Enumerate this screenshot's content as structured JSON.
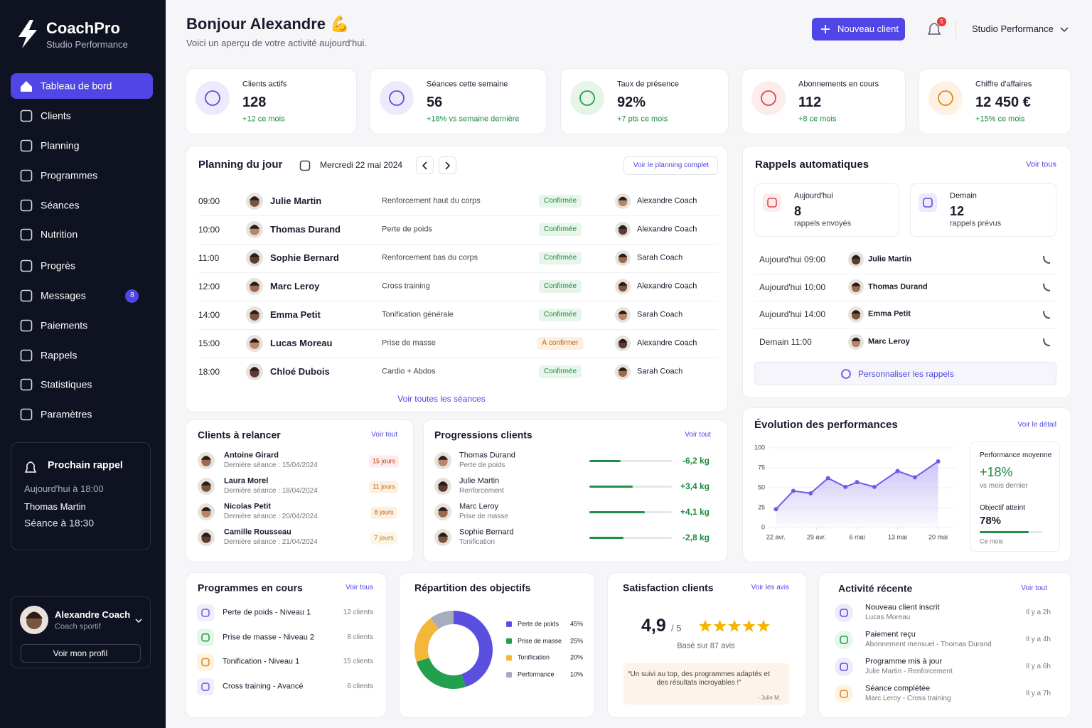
{
  "sidebar": {
    "brand": "CoachPro",
    "brand_subtitle": "Studio Performance",
    "nav": [
      {
        "label": "Tableau de bord",
        "active": true
      },
      {
        "label": "Clients"
      },
      {
        "label": "Planning"
      },
      {
        "label": "Programmes"
      },
      {
        "label": "Séances"
      },
      {
        "label": "Nutrition"
      },
      {
        "label": "Progrès"
      },
      {
        "label": "Messages",
        "badge": 8
      },
      {
        "label": "Paiements"
      },
      {
        "label": "Rappels"
      },
      {
        "label": "Statistiques"
      },
      {
        "label": "Paramètres"
      }
    ],
    "next_reminder": {
      "title": "Prochain rappel",
      "when": "Aujourd'hui à 18:00",
      "client": "Thomas Martin",
      "session": "Séance à 18:30"
    },
    "profile": {
      "name": "Alexandre Coach",
      "role": "Coach sportif",
      "button": "Voir mon profil"
    }
  },
  "header": {
    "greeting": "Bonjour Alexandre 💪",
    "subtitle": "Voici un aperçu de votre activité aujourd'hui.",
    "new_client": "Nouveau client",
    "notifications": 5,
    "studio": "Studio Performance"
  },
  "kpis": [
    {
      "label": "Clients actifs",
      "value": "128",
      "delta": "+12 ce mois"
    },
    {
      "label": "Séances cette semaine",
      "value": "56",
      "delta": "+18% vs semaine dernière"
    },
    {
      "label": "Taux de présence",
      "value": "92%",
      "delta": "+7 pts ce mois"
    },
    {
      "label": "Abonnements en cours",
      "value": "112",
      "delta": "+8 ce mois"
    },
    {
      "label": "Chiffre d'affaires",
      "value": "12 450 €",
      "delta": "+15% ce mois"
    }
  ],
  "planning": {
    "title": "Planning du jour",
    "date": "Mercredi 22 mai 2024",
    "link": "Voir le planning complet",
    "footer": "Voir toutes les séances",
    "rows": [
      {
        "time": "09:00",
        "client": "Julie Martin",
        "session": "Renforcement haut du corps",
        "status": "Confirmée",
        "coach": "Alexandre Coach"
      },
      {
        "time": "10:00",
        "client": "Thomas Durand",
        "session": "Perte de poids",
        "status": "Confirmée",
        "coach": "Alexandre Coach"
      },
      {
        "time": "11:00",
        "client": "Sophie Bernard",
        "session": "Renforcement bas du corps",
        "status": "Confirmée",
        "coach": "Sarah Coach"
      },
      {
        "time": "12:00",
        "client": "Marc Leroy",
        "session": "Cross training",
        "status": "Confirmée",
        "coach": "Alexandre Coach"
      },
      {
        "time": "14:00",
        "client": "Emma Petit",
        "session": "Tonification générale",
        "status": "Confirmée",
        "coach": "Sarah Coach"
      },
      {
        "time": "15:00",
        "client": "Lucas Moreau",
        "session": "Prise de masse",
        "status": "À confirmer",
        "coach": "Alexandre Coach"
      },
      {
        "time": "18:00",
        "client": "Chloé Dubois",
        "session": "Cardio + Abdos",
        "status": "Confirmée",
        "coach": "Sarah Coach"
      }
    ]
  },
  "reminders": {
    "title": "Rappels automatiques",
    "link": "Voir tous",
    "cards": [
      {
        "label": "Aujourd'hui",
        "count": "8",
        "note": "rappels envoyés"
      },
      {
        "label": "Demain",
        "count": "12",
        "note": "rappels prévus"
      }
    ],
    "rows": [
      {
        "when": "Aujourd'hui 09:00",
        "client": "Julie Martin"
      },
      {
        "when": "Aujourd'hui 10:00",
        "client": "Thomas Durand"
      },
      {
        "when": "Aujourd'hui 14:00",
        "client": "Emma Petit"
      },
      {
        "when": "Demain 11:00",
        "client": "Marc Leroy"
      }
    ],
    "button": "Personnaliser les rappels"
  },
  "follow_up": {
    "title": "Clients à relancer",
    "link": "Voir tout",
    "rows": [
      {
        "name": "Antoine Girard",
        "last": "Dernière séance : 15/04/2024",
        "days": "15 jours"
      },
      {
        "name": "Laura Morel",
        "last": "Dernière séance : 18/04/2024",
        "days": "11 jours"
      },
      {
        "name": "Nicolas Petit",
        "last": "Dernière séance : 20/04/2024",
        "days": "8 jours"
      },
      {
        "name": "Camille Rousseau",
        "last": "Dernière séance : 21/04/2024",
        "days": "7 jours"
      }
    ]
  },
  "progressions": {
    "title": "Progressions clients",
    "link": "Voir tout",
    "rows": [
      {
        "name": "Thomas Durand",
        "goal": "Perte de poids",
        "change": "-6,2 kg",
        "progress": 38
      },
      {
        "name": "Julie Martin",
        "goal": "Renforcement",
        "change": "+3,4 kg",
        "progress": 53
      },
      {
        "name": "Marc Leroy",
        "goal": "Prise de masse",
        "change": "+4,1 kg",
        "progress": 67
      },
      {
        "name": "Sophie Bernard",
        "goal": "Tonification",
        "change": "-2,8 kg",
        "progress": 41
      }
    ]
  },
  "performance": {
    "type": "line",
    "title": "Évolution des performances",
    "link": "Voir le détail",
    "color": "#6d5ce8",
    "grid": true,
    "x": [
      0,
      3,
      6,
      9,
      12,
      14,
      17,
      21,
      24,
      28
    ],
    "values": [
      23,
      46,
      43,
      62,
      51,
      57,
      51,
      71,
      63,
      83
    ],
    "xlim": [
      -2.5,
      31
    ],
    "ylim": [
      0,
      100
    ],
    "xticks": [
      {
        "value": 0,
        "label": "22 avr."
      },
      {
        "value": 7,
        "label": "29 avr."
      },
      {
        "value": 14,
        "label": "6 mai"
      },
      {
        "value": 21,
        "label": "13 mai"
      },
      {
        "value": 28,
        "label": "20 mai"
      }
    ],
    "yticks": [
      0,
      25,
      50,
      75,
      100
    ],
    "summary": {
      "label": "Performance moyenne",
      "value": "+18%",
      "note": "vs mois dernier",
      "goal_title": "Objectif atteint",
      "goal": {
        "value": 78,
        "label": "78%"
      },
      "goal_note": "Ce mois"
    }
  },
  "programs": {
    "title": "Programmes en cours",
    "link": "Voir tous",
    "rows": [
      {
        "name": "Perte de poids - Niveau 1",
        "clients": "12 clients"
      },
      {
        "name": "Prise de masse - Niveau 2",
        "clients": "8 clients"
      },
      {
        "name": "Tonification - Niveau 1",
        "clients": "15 clients"
      },
      {
        "name": "Cross training - Avancé",
        "clients": "6 clients"
      }
    ]
  },
  "objectives": {
    "type": "donut",
    "title": "Répartition des objectifs",
    "categories": [
      "Perte de poids",
      "Prise de masse",
      "Tonification",
      "Performance"
    ],
    "values": [
      45,
      25,
      20,
      10
    ],
    "value_labels": [
      "45%",
      "25%",
      "20%",
      "10%"
    ],
    "colors": [
      "#5b4fe0",
      "#22a04b",
      "#f4b73b",
      "#a8acbd"
    ]
  },
  "satisfaction": {
    "title": "Satisfaction clients",
    "link": "Voir les avis",
    "score": "4,9",
    "scale": "/ 5",
    "based_on": "Basé sur 87 avis",
    "quote": "“Un suivi au top, des programmes adaptés et des résultats incroyables !”",
    "author": "- Julie M."
  },
  "activity": {
    "title": "Activité récente",
    "link": "Voir tout",
    "rows": [
      {
        "title": "Nouveau client inscrit",
        "detail": "Lucas Moreau",
        "time": "Il y a 2h"
      },
      {
        "title": "Paiement reçu",
        "detail": "Abonnement mensuel - Thomas Durand",
        "time": "Il y a 4h"
      },
      {
        "title": "Programme mis à jour",
        "detail": "Julie Martin - Renforcement",
        "time": "Il y a 6h"
      },
      {
        "title": "Séance complétée",
        "detail": "Marc Leroy - Cross training",
        "time": "Il y a 7h"
      }
    ]
  }
}
